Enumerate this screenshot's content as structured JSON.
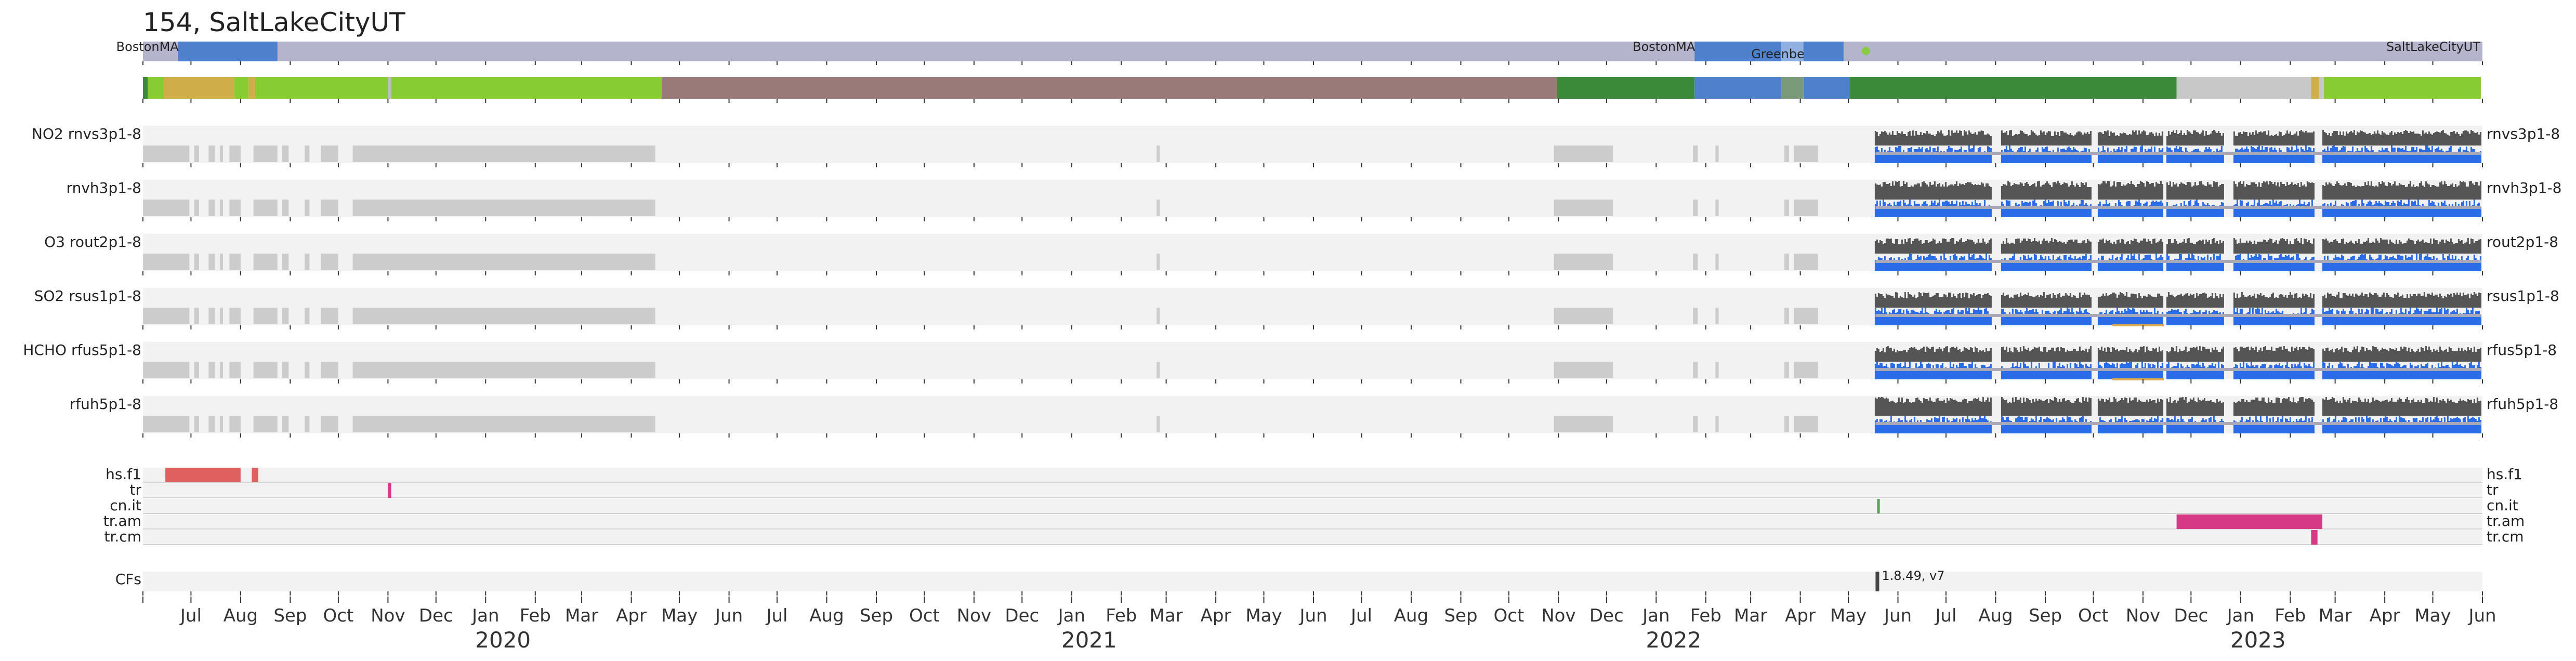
{
  "chart_data": {
    "type": "timeline",
    "title": "154, SaltLakeCityUT",
    "time_range": [
      "2019-06-01",
      "2023-06-01"
    ],
    "colors": {
      "track_bg": "#f2f2f2",
      "missing": "#cccccc",
      "data_gray": "#555555",
      "data_blue": "#2a6ce8",
      "location_bar": "#b4b4cc",
      "location_highlight": "#4f80cc",
      "location_light": "#8fb0e0",
      "flag_hs": "#e06060",
      "flag_tr": "#d63a87",
      "flag_cn": "#5a9a5a",
      "cf": "#444444"
    },
    "locations": [
      {
        "label": "BostonMA",
        "start": "2019-06-23",
        "end": "2019-08-24",
        "shade": "dark"
      },
      {
        "label": "BostonMA",
        "start": "2022-01-25",
        "end": "2022-03-20",
        "shade": "dark"
      },
      {
        "label": "GreenbeltMD",
        "start": "2022-03-20",
        "end": "2022-04-03",
        "shade": "light"
      },
      {
        "label": "",
        "start": "2022-04-03",
        "end": "2022-04-28",
        "shade": "dark"
      },
      {
        "label": "SaltLakeCityUT",
        "start": "2023-05-27",
        "end": "2023-05-31",
        "shade": "none"
      }
    ],
    "location_marker": {
      "date": "2022-05-12",
      "color": "#88cc44"
    },
    "status_segments": [
      {
        "start": "2019-06-01",
        "end": "2019-06-04",
        "color": "#3a8a3a"
      },
      {
        "start": "2019-06-04",
        "end": "2019-06-14",
        "color": "#88cc33"
      },
      {
        "start": "2019-06-14",
        "end": "2019-07-28",
        "color": "#cfae4a"
      },
      {
        "start": "2019-07-28",
        "end": "2019-08-06",
        "color": "#88cc33"
      },
      {
        "start": "2019-08-06",
        "end": "2019-08-10",
        "color": "#cfae4a"
      },
      {
        "start": "2019-08-10",
        "end": "2019-11-01",
        "color": "#88cc33"
      },
      {
        "start": "2019-11-01",
        "end": "2019-11-03",
        "color": "#bbbbbb"
      },
      {
        "start": "2019-11-03",
        "end": "2020-04-20",
        "color": "#88cc33"
      },
      {
        "start": "2020-04-20",
        "end": "2021-10-31",
        "color": "#9a7a78"
      },
      {
        "start": "2021-10-31",
        "end": "2022-01-25",
        "color": "#3a8a3a"
      },
      {
        "start": "2022-01-25",
        "end": "2022-03-20",
        "color": "#4f80cc"
      },
      {
        "start": "2022-03-20",
        "end": "2022-04-03",
        "color": "#7a9a7a"
      },
      {
        "start": "2022-04-03",
        "end": "2022-05-02",
        "color": "#4f80cc"
      },
      {
        "start": "2022-05-02",
        "end": "2022-11-22",
        "color": "#3a8a3a"
      },
      {
        "start": "2022-11-22",
        "end": "2023-02-14",
        "color": "#c8c8c8"
      },
      {
        "start": "2023-02-14",
        "end": "2023-02-19",
        "color": "#cfae4a"
      },
      {
        "start": "2023-02-19",
        "end": "2023-02-22",
        "color": "#c8c8c8"
      },
      {
        "start": "2023-02-22",
        "end": "2023-05-31",
        "color": "#88cc33"
      }
    ],
    "product_rows": [
      {
        "gas": "NO2",
        "product": "rnvs3p1-8",
        "right_label": "rnvs3p1-8",
        "bump_start": "",
        "bump_end": ""
      },
      {
        "gas": "",
        "product": "rnvh3p1-8",
        "right_label": "rnvh3p1-8",
        "bump_start": "",
        "bump_end": ""
      },
      {
        "gas": "O3",
        "product": "rout2p1-8",
        "right_label": "rout2p1-8",
        "bump_start": "",
        "bump_end": ""
      },
      {
        "gas": "SO2",
        "product": "rsus1p1-8",
        "right_label": "rsus1p1-8",
        "bump_start": "2022-10-13",
        "bump_end": "2022-11-14"
      },
      {
        "gas": "HCHO",
        "product": "rfus5p1-8",
        "right_label": "rfus5p1-8",
        "bump_start": "2022-10-13",
        "bump_end": "2022-11-14"
      },
      {
        "gas": "",
        "product": "rfuh5p1-8",
        "right_label": "rfuh5p1-8",
        "bump_start": "",
        "bump_end": ""
      }
    ],
    "missing_spans": [
      [
        "2019-06-01",
        "2019-06-30"
      ],
      [
        "2019-07-03",
        "2019-07-06"
      ],
      [
        "2019-07-12",
        "2019-07-16"
      ],
      [
        "2019-07-19",
        "2019-07-21"
      ],
      [
        "2019-07-25",
        "2019-08-01"
      ],
      [
        "2019-08-09",
        "2019-08-24"
      ],
      [
        "2019-08-27",
        "2019-08-31"
      ],
      [
        "2019-09-10",
        "2019-09-13"
      ],
      [
        "2019-09-20",
        "2019-10-01"
      ],
      [
        "2019-10-10",
        "2020-04-16"
      ],
      [
        "2021-02-23",
        "2021-02-25"
      ],
      [
        "2021-10-29",
        "2021-12-05"
      ],
      [
        "2022-01-24",
        "2022-01-27"
      ],
      [
        "2022-02-07",
        "2022-02-09"
      ],
      [
        "2022-03-22",
        "2022-03-25"
      ],
      [
        "2022-03-28",
        "2022-04-12"
      ]
    ],
    "data_period": {
      "start": "2022-05-18",
      "end": "2023-05-31"
    },
    "data_gaps": [
      [
        "2022-07-30",
        "2022-08-04"
      ],
      [
        "2022-09-30",
        "2022-10-04"
      ],
      [
        "2022-11-14",
        "2022-11-16"
      ],
      [
        "2022-12-22",
        "2022-12-27"
      ],
      [
        "2023-02-16",
        "2023-02-21"
      ]
    ],
    "flag_rows": [
      {
        "label": "hs.f1",
        "right_label": "hs.f1",
        "color": "#e06060",
        "events": [
          [
            "2019-06-15",
            "2019-08-01"
          ],
          [
            "2019-08-08",
            "2019-08-12"
          ]
        ]
      },
      {
        "label": "tr",
        "right_label": "tr",
        "color": "#d63a87",
        "events": [
          [
            "2019-11-01",
            "2019-11-03"
          ]
        ]
      },
      {
        "label": "cn.it",
        "right_label": "cn.it",
        "color": "#5a9a5a",
        "events": [
          [
            "2022-05-19",
            "2022-05-20"
          ]
        ]
      },
      {
        "label": "tr.am",
        "right_label": "tr.am",
        "color": "#d63a87",
        "events": [
          [
            "2022-11-22",
            "2023-02-21"
          ]
        ]
      },
      {
        "label": "tr.cm",
        "right_label": "tr.cm",
        "color": "#d63a87",
        "events": [
          [
            "2023-02-14",
            "2023-02-18"
          ]
        ]
      }
    ],
    "cf_row": {
      "label": "CFs",
      "date": "2022-05-18",
      "annotation": "1.8.49, v7"
    },
    "month_ticks": [
      "Jul",
      "Aug",
      "Sep",
      "Oct",
      "Nov",
      "Dec",
      "Jan",
      "Feb",
      "Mar",
      "Apr",
      "May",
      "Jun",
      "Jul",
      "Aug",
      "Sep",
      "Oct",
      "Nov",
      "Dec",
      "Jan",
      "Feb",
      "Mar",
      "Apr",
      "May",
      "Jun",
      "Jul",
      "Aug",
      "Sep",
      "Oct",
      "Nov",
      "Dec",
      "Jan",
      "Feb",
      "Mar",
      "Apr",
      "May",
      "Jun",
      "Jul",
      "Aug",
      "Sep",
      "Oct",
      "Nov",
      "Dec",
      "Jan",
      "Feb",
      "Mar",
      "Apr",
      "May",
      "Jun"
    ],
    "years": [
      {
        "label": "2020",
        "date": "2020-01-01"
      },
      {
        "label": "2021",
        "date": "2021-01-01"
      },
      {
        "label": "2022",
        "date": "2022-01-01"
      },
      {
        "label": "2023",
        "date": "2023-01-01"
      }
    ]
  }
}
